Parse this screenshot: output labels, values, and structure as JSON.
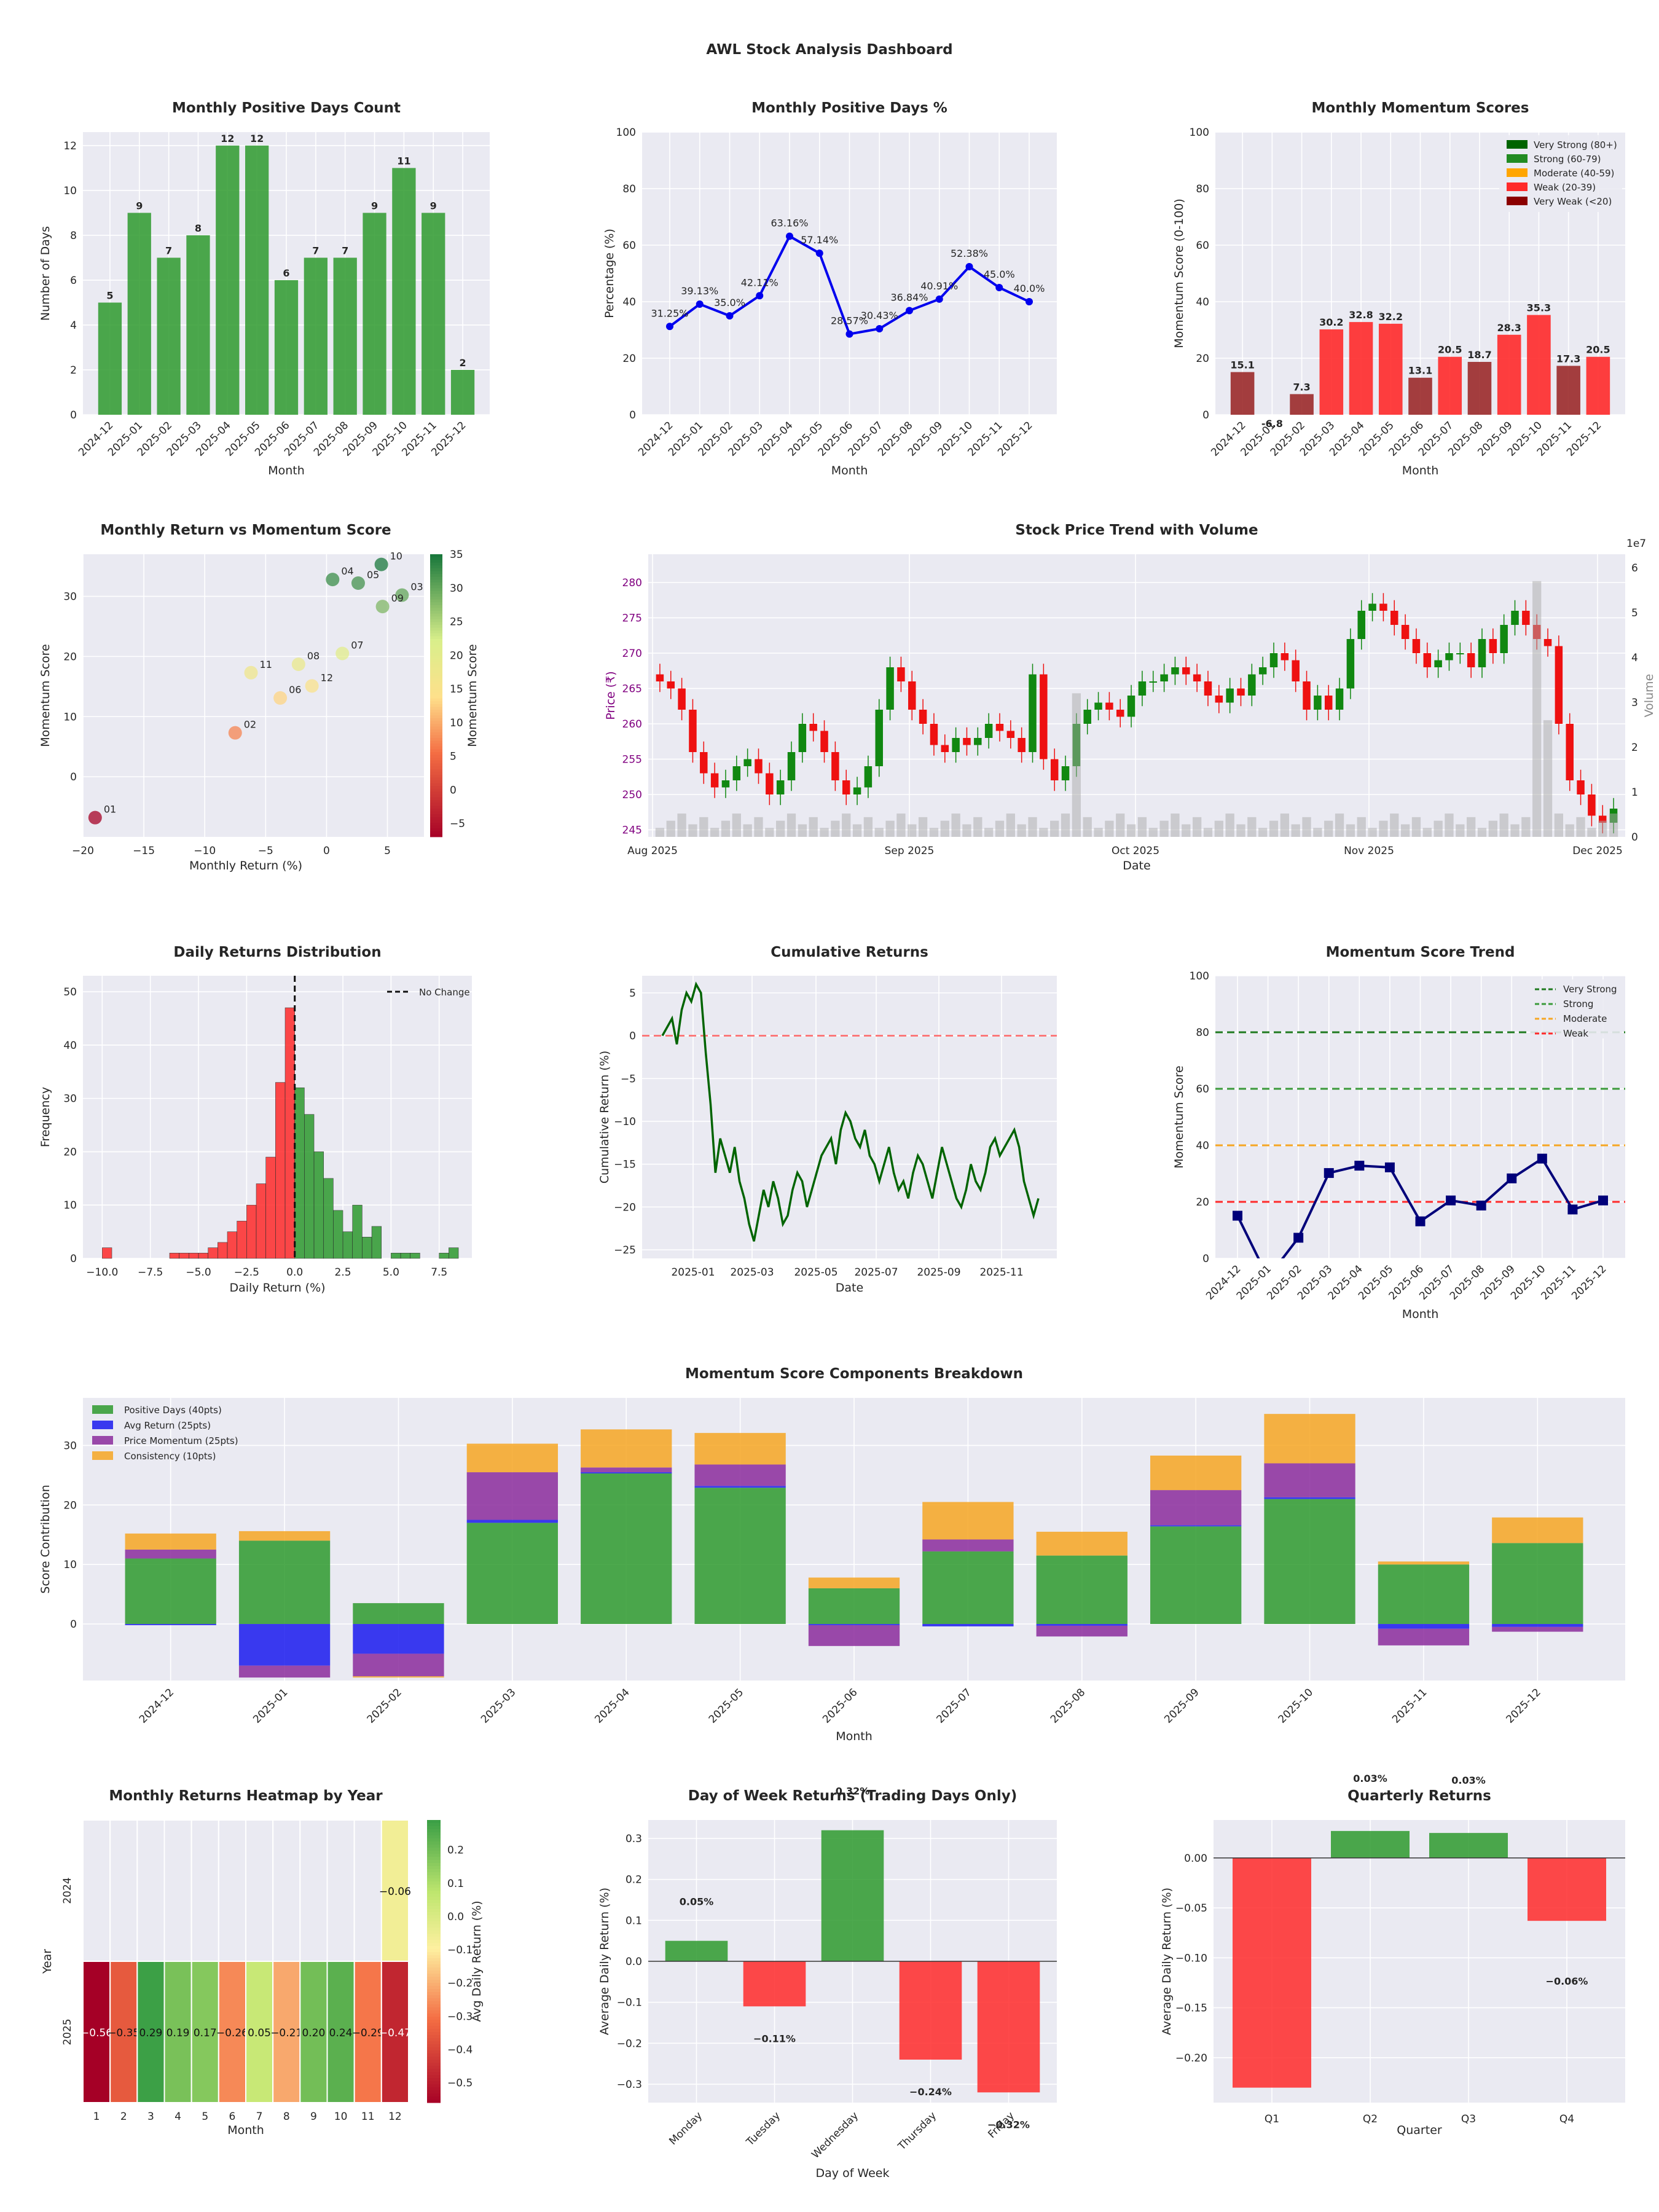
{
  "suptitle": "AWL Stock Analysis Dashboard",
  "colors": {
    "green": "#2e9a2e",
    "red": "#ff2a2a",
    "darkred": "#9b2a2a",
    "blue": "#0000ee",
    "navy": "#00007a",
    "orange": "#f6a623",
    "purple": "#8b2c9c",
    "grid": "#ffffff",
    "panel": "#eaeaf2"
  },
  "chart_data": [
    {
      "id": "positive_days_count",
      "type": "bar",
      "title": "Monthly Positive Days Count",
      "xlabel": "Month",
      "ylabel": "Number of Days",
      "ylim": [
        0,
        12.6
      ],
      "yticks": [
        0,
        2,
        4,
        6,
        8,
        10,
        12
      ],
      "categories": [
        "2024-12",
        "2025-01",
        "2025-02",
        "2025-03",
        "2025-04",
        "2025-05",
        "2025-06",
        "2025-07",
        "2025-08",
        "2025-09",
        "2025-10",
        "2025-11",
        "2025-12"
      ],
      "values": [
        5,
        9,
        7,
        8,
        12,
        12,
        6,
        7,
        7,
        9,
        11,
        9,
        2
      ]
    },
    {
      "id": "positive_days_pct",
      "type": "line",
      "title": "Monthly Positive Days %",
      "xlabel": "Month",
      "ylabel": "Percentage (%)",
      "ylim": [
        0,
        100
      ],
      "yticks": [
        0,
        20,
        40,
        60,
        80,
        100
      ],
      "categories": [
        "2024-12",
        "2025-01",
        "2025-02",
        "2025-03",
        "2025-04",
        "2025-05",
        "2025-06",
        "2025-07",
        "2025-08",
        "2025-09",
        "2025-10",
        "2025-11",
        "2025-12"
      ],
      "values": [
        31.25,
        39.13,
        35.0,
        42.11,
        63.16,
        57.14,
        28.57,
        30.43,
        36.84,
        40.91,
        52.38,
        45.0,
        40.0
      ],
      "labels": [
        "31.25%",
        "39.13%",
        "35.0%",
        "42.11%",
        "63.16%",
        "57.14%",
        "28.57%",
        "30.43%",
        "36.84%",
        "40.91%",
        "52.38%",
        "45.0%",
        "40.0%"
      ]
    },
    {
      "id": "momentum_scores",
      "type": "bar",
      "title": "Monthly Momentum Scores",
      "xlabel": "Month",
      "ylabel": "Momentum Score (0-100)",
      "ylim": [
        0,
        100
      ],
      "yticks": [
        0,
        20,
        40,
        60,
        80,
        100
      ],
      "categories": [
        "2024-12",
        "2025-01",
        "2025-02",
        "2025-03",
        "2025-04",
        "2025-05",
        "2025-06",
        "2025-07",
        "2025-08",
        "2025-09",
        "2025-10",
        "2025-11",
        "2025-12"
      ],
      "values": [
        15.1,
        -6.8,
        7.3,
        30.2,
        32.8,
        32.2,
        13.1,
        20.5,
        18.7,
        28.3,
        35.3,
        17.3,
        20.5
      ],
      "legend": [
        {
          "label": "Very Strong (80+)",
          "color": "#006400"
        },
        {
          "label": "Strong (60-79)",
          "color": "#228b22"
        },
        {
          "label": "Moderate (40-59)",
          "color": "#ffa500"
        },
        {
          "label": "Weak (20-39)",
          "color": "#ff2a2a"
        },
        {
          "label": "Very Weak (<20)",
          "color": "#8b0000"
        }
      ]
    },
    {
      "id": "return_vs_momentum",
      "type": "scatter",
      "title": "Monthly Return vs Momentum Score",
      "xlabel": "Monthly Return (%)",
      "ylabel": "Momentum Score",
      "colorbar_label": "Momentum Score",
      "xlim": [
        -20,
        8
      ],
      "ylim": [
        -10,
        37
      ],
      "xticks": [
        -20,
        -15,
        -10,
        -5,
        0,
        5
      ],
      "yticks": [
        0,
        10,
        20,
        30
      ],
      "cticks": [
        -5,
        0,
        5,
        10,
        15,
        20,
        25,
        30,
        35
      ],
      "points": [
        {
          "label": "01",
          "x": -19,
          "y": -6.8
        },
        {
          "label": "02",
          "x": -7.5,
          "y": 7.3
        },
        {
          "label": "03",
          "x": 6.2,
          "y": 30.2
        },
        {
          "label": "04",
          "x": 0.5,
          "y": 32.8
        },
        {
          "label": "05",
          "x": 2.6,
          "y": 32.2
        },
        {
          "label": "06",
          "x": -3.8,
          "y": 13.1
        },
        {
          "label": "07",
          "x": 1.3,
          "y": 20.5
        },
        {
          "label": "08",
          "x": -2.3,
          "y": 18.7
        },
        {
          "label": "09",
          "x": 4.6,
          "y": 28.3
        },
        {
          "label": "10",
          "x": 4.5,
          "y": 35.3
        },
        {
          "label": "11",
          "x": -6.2,
          "y": 17.3
        },
        {
          "label": "12",
          "x": -1.2,
          "y": 15.1
        }
      ]
    },
    {
      "id": "price_volume",
      "type": "candlestick",
      "title": "Stock Price Trend with Volume",
      "xlabel": "Date",
      "ylabel": "Price (₹)",
      "y2label": "Volume",
      "y2_exponent": "1e7",
      "ylim": [
        244,
        284
      ],
      "yticks": [
        245,
        250,
        255,
        260,
        265,
        270,
        275,
        280
      ],
      "y2ticks": [
        0,
        1,
        2,
        3,
        4,
        5,
        6
      ],
      "xticklabels": [
        "Aug 2025",
        "Sep 2025",
        "Oct 2025",
        "Nov 2025",
        "Dec 2025"
      ],
      "close_series": [
        266,
        265,
        262,
        256,
        253,
        251,
        252,
        254,
        255,
        253,
        250,
        252,
        256,
        260,
        259,
        256,
        252,
        250,
        251,
        254,
        262,
        268,
        266,
        262,
        260,
        257,
        256,
        258,
        257,
        258,
        260,
        259,
        258,
        256,
        267,
        255,
        252,
        254,
        260,
        262,
        263,
        262,
        261,
        264,
        266,
        266,
        267,
        268,
        267,
        266,
        264,
        263,
        265,
        264,
        267,
        268,
        270,
        269,
        266,
        262,
        264,
        262,
        265,
        272,
        276,
        277,
        276,
        274,
        272,
        270,
        268,
        269,
        270,
        270,
        268,
        272,
        270,
        274,
        276,
        274,
        272,
        271,
        260,
        252,
        250,
        247,
        246,
        248
      ]
    },
    {
      "id": "daily_returns_hist",
      "type": "histogram",
      "title": "Daily Returns Distribution",
      "xlabel": "Daily Return (%)",
      "ylabel": "Frequency",
      "xlim": [
        -11,
        9.2
      ],
      "ylim": [
        0,
        53
      ],
      "xticks": [
        -10.0,
        -7.5,
        -5.0,
        -2.5,
        0.0,
        2.5,
        5.0,
        7.5
      ],
      "yticks": [
        0,
        10,
        20,
        30,
        40,
        50
      ],
      "legend": "No Change",
      "bin_width": 0.5,
      "bins": [
        {
          "x": -10.0,
          "count": 2
        },
        {
          "x": -6.5,
          "count": 1
        },
        {
          "x": -6.0,
          "count": 1
        },
        {
          "x": -5.5,
          "count": 1
        },
        {
          "x": -5.0,
          "count": 1
        },
        {
          "x": -4.5,
          "count": 2
        },
        {
          "x": -4.0,
          "count": 3
        },
        {
          "x": -3.5,
          "count": 5
        },
        {
          "x": -3.0,
          "count": 7
        },
        {
          "x": -2.5,
          "count": 10
        },
        {
          "x": -2.0,
          "count": 14
        },
        {
          "x": -1.5,
          "count": 19
        },
        {
          "x": -1.0,
          "count": 33
        },
        {
          "x": -0.5,
          "count": 47
        },
        {
          "x": 0.0,
          "count": 32
        },
        {
          "x": 0.5,
          "count": 27
        },
        {
          "x": 1.0,
          "count": 20
        },
        {
          "x": 1.5,
          "count": 15
        },
        {
          "x": 2.0,
          "count": 9
        },
        {
          "x": 2.5,
          "count": 5
        },
        {
          "x": 3.0,
          "count": 10
        },
        {
          "x": 3.5,
          "count": 4
        },
        {
          "x": 4.0,
          "count": 6
        },
        {
          "x": 5.0,
          "count": 1
        },
        {
          "x": 5.5,
          "count": 1
        },
        {
          "x": 6.0,
          "count": 1
        },
        {
          "x": 7.5,
          "count": 1
        },
        {
          "x": 8.0,
          "count": 2
        }
      ]
    },
    {
      "id": "cumulative_returns",
      "type": "line",
      "title": "Cumulative Returns",
      "xlabel": "Date",
      "ylabel": "Cumulative Return (%)",
      "ylim": [
        -26,
        7
      ],
      "yticks": [
        -25,
        -20,
        -15,
        -10,
        -5,
        0,
        5
      ],
      "xticklabels": [
        "2025-01",
        "2025-03",
        "2025-05",
        "2025-07",
        "2025-09",
        "2025-11"
      ],
      "values": [
        0,
        1,
        2,
        -1,
        3,
        5,
        4,
        6,
        5,
        -2,
        -8,
        -16,
        -12,
        -14,
        -16,
        -13,
        -17,
        -19,
        -22,
        -24,
        -21,
        -18,
        -20,
        -17,
        -19,
        -22,
        -21,
        -18,
        -16,
        -17,
        -20,
        -18,
        -16,
        -14,
        -13,
        -12,
        -15,
        -11,
        -9,
        -10,
        -12,
        -13,
        -11,
        -14,
        -15,
        -17,
        -15,
        -13,
        -16,
        -18,
        -17,
        -19,
        -16,
        -14,
        -15,
        -17,
        -19,
        -16,
        -13,
        -15,
        -17,
        -19,
        -20,
        -18,
        -15,
        -17,
        -18,
        -16,
        -13,
        -12,
        -14,
        -13,
        -12,
        -11,
        -13,
        -17,
        -19,
        -21,
        -19
      ]
    },
    {
      "id": "momentum_trend",
      "type": "line",
      "title": "Momentum Score Trend",
      "xlabel": "Month",
      "ylabel": "Momentum Score",
      "ylim": [
        0,
        100
      ],
      "yticks": [
        0,
        20,
        40,
        60,
        80,
        100
      ],
      "categories": [
        "2024-12",
        "2025-01",
        "2025-02",
        "2025-03",
        "2025-04",
        "2025-05",
        "2025-06",
        "2025-07",
        "2025-08",
        "2025-09",
        "2025-10",
        "2025-11",
        "2025-12"
      ],
      "values": [
        15.1,
        -6.8,
        7.3,
        30.2,
        32.8,
        32.2,
        13.1,
        20.5,
        18.7,
        28.3,
        35.3,
        17.3,
        20.5
      ],
      "thresholds": [
        {
          "label": "Very Strong",
          "value": 80,
          "color": "#1f7a1f"
        },
        {
          "label": "Strong",
          "value": 60,
          "color": "#3a9a3a"
        },
        {
          "label": "Moderate",
          "value": 40,
          "color": "#f6a623"
        },
        {
          "label": "Weak",
          "value": 20,
          "color": "#ff2a2a"
        }
      ]
    },
    {
      "id": "components",
      "type": "stacked_bar",
      "title": "Momentum Score Components Breakdown",
      "xlabel": "Month",
      "ylabel": "Score Contribution",
      "ylim": [
        -9.5,
        38
      ],
      "yticks": [
        0,
        10,
        20,
        30
      ],
      "categories": [
        "2024-12",
        "2025-01",
        "2025-02",
        "2025-03",
        "2025-04",
        "2025-05",
        "2025-06",
        "2025-07",
        "2025-08",
        "2025-09",
        "2025-10",
        "2025-11",
        "2025-12"
      ],
      "series": [
        {
          "name": "Positive Days (40pts)",
          "color": "#2e9a2e",
          "values": [
            11,
            14,
            3.5,
            17,
            25.3,
            22.9,
            6,
            12.2,
            11.5,
            16.4,
            21,
            10,
            13.6
          ]
        },
        {
          "name": "Avg Return (25pts)",
          "color": "#1a1aee",
          "values": [
            -0.2,
            -7,
            -5,
            0.5,
            0.2,
            0.3,
            -0.2,
            -0.4,
            -0.3,
            0.2,
            0.3,
            -0.8,
            -0.5
          ]
        },
        {
          "name": "Price Momentum (25pts)",
          "color": "#8b2c9c",
          "values": [
            1.5,
            -2,
            -3.8,
            8,
            0.8,
            3.6,
            -3.5,
            2,
            -1.8,
            5.9,
            5.7,
            -2.8,
            -0.8
          ]
        },
        {
          "name": "Consistency (10pts)",
          "color": "#f6a623",
          "values": [
            2.7,
            1.6,
            -0.2,
            4.8,
            6.4,
            5.3,
            1.8,
            6.3,
            4,
            5.8,
            8.3,
            0.5,
            4.3
          ]
        }
      ]
    },
    {
      "id": "heatmap",
      "type": "heatmap",
      "title": "Monthly Returns Heatmap by Year",
      "xlabel": "Month",
      "ylabel": "Year",
      "colorbar_label": "Avg Daily Return (%)",
      "columns": [
        "1",
        "2",
        "3",
        "4",
        "5",
        "6",
        "7",
        "8",
        "9",
        "10",
        "11",
        "12"
      ],
      "rows": [
        "2024",
        "2025"
      ],
      "cticks": [
        0.2,
        0.1,
        0.0,
        -0.1,
        -0.2,
        -0.3,
        -0.4,
        -0.5
      ],
      "values": [
        [
          null,
          null,
          null,
          null,
          null,
          null,
          null,
          null,
          null,
          null,
          null,
          -0.06
        ],
        [
          -0.56,
          -0.35,
          0.29,
          0.19,
          0.17,
          -0.26,
          0.05,
          -0.21,
          0.2,
          0.24,
          -0.29,
          -0.47
        ]
      ],
      "labels": [
        [
          "",
          "",
          "",
          "",
          "",
          "",
          "",
          "",
          "",
          "",
          "",
          "-0.06"
        ],
        [
          "-0.56",
          "-0.35",
          "0.29",
          "0.19",
          "0.17",
          "-0.26",
          "0.05",
          "-0.21",
          "0.20",
          "0.24",
          "-0.29",
          "-0.47"
        ]
      ]
    },
    {
      "id": "day_of_week",
      "type": "bar",
      "title": "Day of Week Returns (Trading Days Only)",
      "xlabel": "Day of Week",
      "ylabel": "Average Daily Return (%)",
      "ylim": [
        -0.345,
        0.345
      ],
      "yticks": [
        -0.3,
        -0.2,
        -0.1,
        0.0,
        0.1,
        0.2,
        0.3
      ],
      "categories": [
        "Monday",
        "Tuesday",
        "Wednesday",
        "Thursday",
        "Friday"
      ],
      "values": [
        0.05,
        -0.11,
        0.32,
        -0.24,
        -0.32
      ],
      "labels": [
        "0.05%",
        "-0.11%",
        "0.32%",
        "-0.24%",
        "-0.32%"
      ]
    },
    {
      "id": "quarterly",
      "type": "bar",
      "title": "Quarterly Returns",
      "xlabel": "Quarter",
      "ylabel": "Average Daily Return (%)",
      "ylim": [
        -0.245,
        0.038
      ],
      "yticks": [
        -0.2,
        -0.15,
        -0.1,
        -0.05,
        0.0
      ],
      "categories": [
        "Q1",
        "Q2",
        "Q3",
        "Q4"
      ],
      "values": [
        -0.23,
        0.027,
        0.025,
        -0.063
      ],
      "labels": [
        "",
        "0.03%",
        "0.03%",
        "-0.06%"
      ]
    }
  ]
}
